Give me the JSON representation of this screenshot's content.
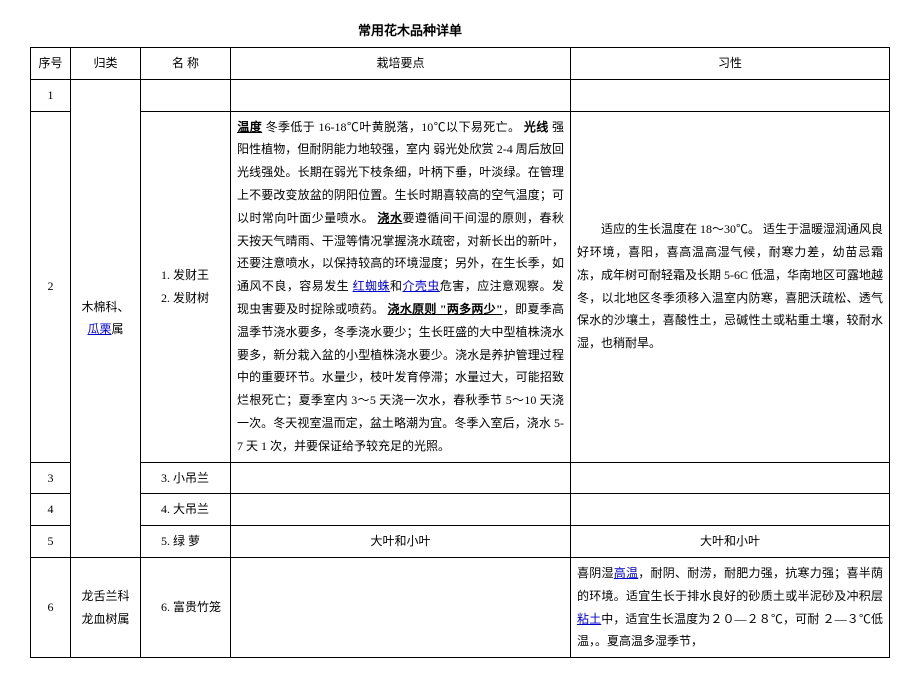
{
  "title": "常用花木品种详单",
  "headers": {
    "no": "序号",
    "cat": "归类",
    "name": "名 称",
    "care": "栽培要点",
    "habit": "习性"
  },
  "row1": {
    "no": "1"
  },
  "row2": {
    "no": "2",
    "cat_prefix": "木棉科、",
    "cat_link": "瓜栗",
    "cat_suffix": "属",
    "name": "1. 发财王\n2. 发财树",
    "care_temp_label": "温度",
    "care_temp": " 冬季低于 16-18℃叶黄脱落，10℃以下易死亡。",
    "care_light_label": "光线",
    "care_light": " 强阳性植物，但耐阴能力地较强，室内 弱光处欣赏 2-4 周后放回光线强处。长期在弱光下枝条细，叶柄下垂，叶淡绿。在管理上不要改变放盆的阴阳位置。生长时期喜较高的空气温度；可以时常向叶面少量喷水。",
    "care_water_label": "浇水",
    "care_water_a": "要遵循间干间湿的原则，春秋天按天气晴雨、干湿等情况掌握浇水疏密，对新长出的新叶，还要注意喷水，以保持较高的环境湿度；另外，在生长季，如通风不良，容易发生 ",
    "care_mite": "红蜘蛛",
    "care_and": "和",
    "care_scale": "介壳虫",
    "care_water_b": "危害，应注意观察。发现虫害要及时捉除或喷药。 ",
    "care_rule_label": "浇水原则 \"两多两少\"",
    "care_rule": "，即夏季高温季节浇水要多，冬季浇水要少；生长旺盛的大中型植株浇水要多，新分栽入盆的小型植株浇水要少。浇水是养护管理过程中的重要环节。水量少，枝叶发育停滞；水量过大，可能招致烂根死亡；夏季室内 3～5 天浇一次水，春秋季节 5～10 天浇一次。冬天视室温而定，盆土略潮为宜。冬季入室后，浇水 5-7 天 1 次，并要保证给予较充足的光照。",
    "habit": "适应的生长温度在 18～30℃。 适生于温暖湿润通风良好环境，喜阳，喜高温高湿气候，耐寒力差，幼苗忌霜冻，成年树可耐轻霜及长期 5-6C 低温，华南地区可露地越冬，以北地区冬季须移入温室内防寒，喜肥沃疏松、透气保水的沙壤土，喜酸性土，忌碱性土或粘重土壤，较耐水湿，也稍耐旱。"
  },
  "row3": {
    "no": "3",
    "name": "3. 小吊兰"
  },
  "row4": {
    "no": "4",
    "name": "4. 大吊兰"
  },
  "row5": {
    "no": "5",
    "name": "5. 绿 萝",
    "care": "大叶和小叶",
    "habit": "大叶和小叶"
  },
  "row6": {
    "no": "6",
    "cat": "龙舌兰科\n龙血树属",
    "name": "6. 富贵竹笼",
    "habit_a": "喜阴湿",
    "habit_hot": "高温",
    "habit_b": "，耐阴、耐涝，耐肥力强，抗寒力强；喜半荫的环境。适宜生长于排水良好的砂质土或半泥砂及冲积层",
    "habit_clay": "粘土",
    "habit_c": "中，适宜生长温度为２０—２８℃，可耐 ２—３℃低温，。夏高温多湿季节，"
  }
}
